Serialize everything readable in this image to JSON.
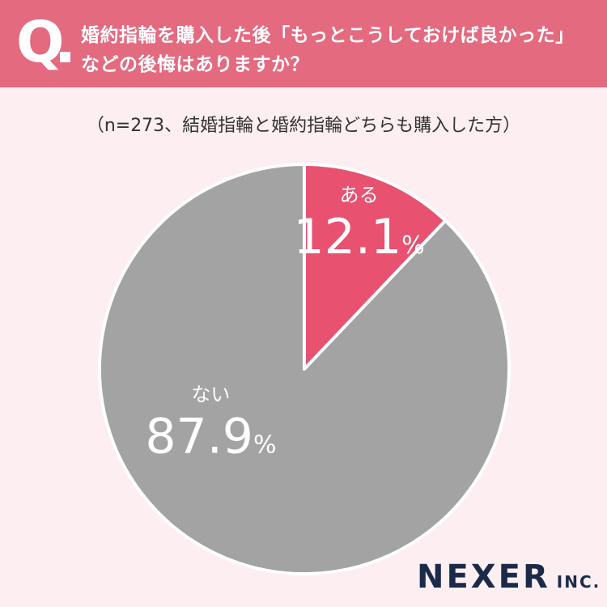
{
  "question": {
    "mark": "Q",
    "line1": "婚約指輪を購入した後「もっとこうしておけば良かった」",
    "line2": "などの後悔はありますか？"
  },
  "subtitle": "（n=273、結婚指輪と婚約指輪どちらも購入した方）",
  "chart_data": {
    "type": "pie",
    "categories": [
      "ある",
      "ない"
    ],
    "values": [
      12.1,
      87.9
    ],
    "value_labels": [
      "12.1",
      "87.9"
    ],
    "unit": "%",
    "colors": [
      "#e85170",
      "#a3a3a3"
    ]
  },
  "logo": {
    "main": "NEXER",
    "sub": "INC."
  }
}
